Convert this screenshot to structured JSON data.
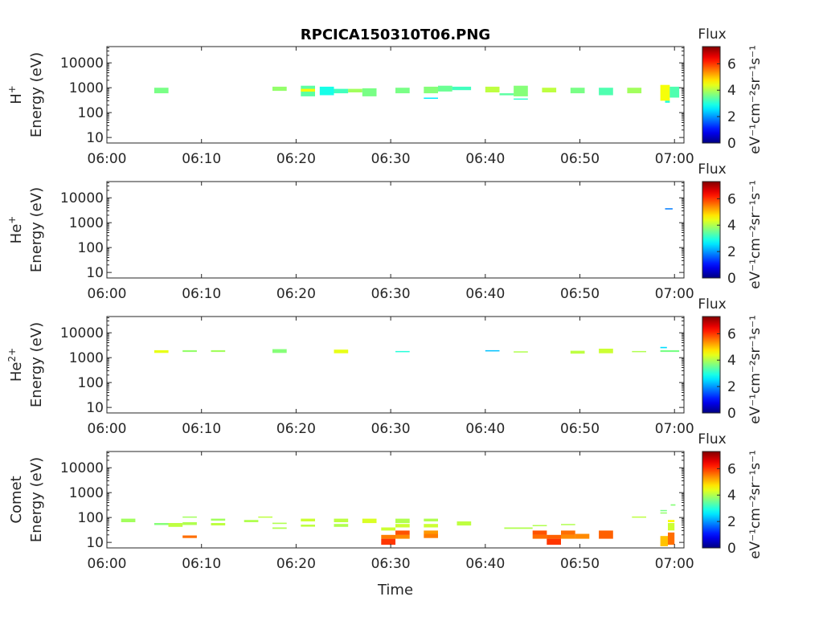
{
  "title": "RPCICA150310T06.PNG",
  "colorbar": {
    "title": "Flux",
    "label": "eV⁻¹cm⁻²sr⁻¹s⁻¹",
    "ticks": [
      "0",
      "2",
      "4",
      "6"
    ],
    "range": [
      0,
      7.3
    ],
    "colormap": "jet"
  },
  "xaxis": {
    "xlabel": "Time",
    "ticks": [
      "06:00",
      "06:10",
      "06:20",
      "06:30",
      "06:40",
      "06:50",
      "07:00"
    ],
    "range_min": [
      0,
      61
    ]
  },
  "yaxis": {
    "scale": "log",
    "tick_values": [
      10,
      100,
      1000,
      10000
    ],
    "ticks": [
      "10",
      "100",
      "1000",
      "10000"
    ],
    "range": [
      6,
      45000
    ]
  },
  "chart_data": [
    {
      "type": "heatmap",
      "species": "H",
      "charge_sup": "+",
      "ylabel_line2": "Energy (eV)",
      "cells": [
        [
          5,
          6.5,
          600,
          1000,
          3.6
        ],
        [
          17.5,
          19,
          750,
          1100,
          3.8
        ],
        [
          20.5,
          22,
          450,
          1200,
          3.4
        ],
        [
          20.5,
          22,
          700,
          900,
          4.6
        ],
        [
          22.5,
          24,
          500,
          1100,
          2.9
        ],
        [
          24,
          25.5,
          600,
          900,
          3.2
        ],
        [
          25.5,
          27,
          650,
          900,
          3.9
        ],
        [
          27,
          28.5,
          450,
          950,
          3.6
        ],
        [
          30.5,
          32,
          600,
          1000,
          3.6
        ],
        [
          33.5,
          35,
          600,
          1100,
          3.7
        ],
        [
          33.5,
          35,
          370,
          400,
          2.6
        ],
        [
          35,
          36.5,
          700,
          1200,
          3.5
        ],
        [
          36.5,
          38.5,
          800,
          1100,
          3.2
        ],
        [
          40,
          41.5,
          650,
          1100,
          4.1
        ],
        [
          41.5,
          43,
          500,
          600,
          3.4
        ],
        [
          43,
          44.5,
          450,
          1200,
          3.7
        ],
        [
          43,
          44.5,
          330,
          370,
          3.1
        ],
        [
          46,
          47.5,
          650,
          1000,
          4.1
        ],
        [
          49,
          50.5,
          600,
          1000,
          3.6
        ],
        [
          52,
          53.5,
          500,
          1000,
          3.3
        ],
        [
          55,
          56.5,
          600,
          1000,
          3.9
        ],
        [
          58.5,
          59.5,
          300,
          1300,
          4.5
        ],
        [
          59,
          59.5,
          250,
          300,
          3.0
        ],
        [
          59.5,
          60.5,
          400,
          1100,
          3.3
        ]
      ]
    },
    {
      "type": "heatmap",
      "species": "He",
      "charge_sup": "+",
      "ylabel_line2": "Energy (eV)",
      "cells": [
        [
          59,
          59.8,
          3400,
          3800,
          1.8
        ]
      ]
    },
    {
      "type": "heatmap",
      "species": "He",
      "charge_sup": "2+",
      "ylabel_line2": "Energy (eV)",
      "cells": [
        [
          5,
          6.5,
          1550,
          2000,
          4.4
        ],
        [
          8,
          9.5,
          1700,
          2000,
          3.8
        ],
        [
          11,
          12.5,
          1700,
          2000,
          3.9
        ],
        [
          17.5,
          19,
          1550,
          2200,
          3.7
        ],
        [
          24,
          25.5,
          1500,
          2100,
          4.4
        ],
        [
          30.5,
          32,
          1700,
          1850,
          3.0
        ],
        [
          40,
          41.5,
          1800,
          2000,
          2.3
        ],
        [
          43,
          44.5,
          1700,
          1800,
          4.0
        ],
        [
          49,
          50.5,
          1450,
          1900,
          4.1
        ],
        [
          52,
          53.5,
          1500,
          2300,
          4.2
        ],
        [
          55.5,
          57,
          1700,
          1850,
          4.0
        ],
        [
          58.5,
          59.2,
          2400,
          2700,
          2.5
        ],
        [
          58.5,
          60.5,
          1700,
          2000,
          3.6
        ]
      ]
    },
    {
      "type": "heatmap",
      "species": "Comet",
      "charge_sup": "",
      "ylabel_line2": "Energy (eV)",
      "cells": [
        [
          1.5,
          3,
          65,
          90,
          3.9
        ],
        [
          5,
          6.5,
          50,
          60,
          3.7
        ],
        [
          6.5,
          8,
          42,
          60,
          4.1
        ],
        [
          8,
          9.5,
          50,
          65,
          4.0
        ],
        [
          8,
          9.5,
          100,
          110,
          3.9
        ],
        [
          8,
          9.5,
          15,
          19,
          5.6
        ],
        [
          11,
          12.5,
          48,
          60,
          4.1
        ],
        [
          11,
          12.5,
          75,
          90,
          3.9
        ],
        [
          14.5,
          16,
          65,
          80,
          4.0
        ],
        [
          16,
          17.5,
          100,
          110,
          4.1
        ],
        [
          17.5,
          19,
          35,
          40,
          4.0
        ],
        [
          17.5,
          19,
          55,
          62,
          4.0
        ],
        [
          20.5,
          22,
          43,
          52,
          4.1
        ],
        [
          20.5,
          22,
          70,
          90,
          4.2
        ],
        [
          24,
          25.5,
          42,
          55,
          4.0
        ],
        [
          24,
          25.5,
          65,
          90,
          4.1
        ],
        [
          27,
          28.5,
          60,
          90,
          4.3
        ],
        [
          29,
          30.5,
          8,
          14,
          6.0
        ],
        [
          29,
          30.5,
          14,
          20,
          5.5
        ],
        [
          29,
          30.5,
          30,
          40,
          4.2
        ],
        [
          30.5,
          32,
          20,
          30,
          5.8
        ],
        [
          30.5,
          32,
          14,
          20,
          5.4
        ],
        [
          30.5,
          32,
          40,
          55,
          4.2
        ],
        [
          30.5,
          32,
          60,
          90,
          4.0
        ],
        [
          33.5,
          35,
          15,
          22,
          5.5
        ],
        [
          33.5,
          35,
          22,
          30,
          5.3
        ],
        [
          33.5,
          35,
          40,
          55,
          4.2
        ],
        [
          33.5,
          35,
          70,
          90,
          4.0
        ],
        [
          37,
          38.5,
          48,
          70,
          4.1
        ],
        [
          42,
          45,
          35,
          40,
          4.0
        ],
        [
          45,
          46.5,
          20,
          30,
          5.8
        ],
        [
          45,
          46.5,
          14,
          20,
          5.6
        ],
        [
          45,
          46.5,
          45,
          50,
          4.0
        ],
        [
          46.5,
          48,
          8,
          14,
          6.0
        ],
        [
          46.5,
          48,
          14,
          20,
          5.7
        ],
        [
          48,
          49.5,
          20,
          30,
          5.6
        ],
        [
          48,
          49.5,
          14,
          20,
          5.4
        ],
        [
          48,
          49.5,
          50,
          55,
          4.0
        ],
        [
          49.5,
          51,
          14,
          22,
          5.4
        ],
        [
          52,
          53.5,
          14,
          30,
          5.7
        ],
        [
          55.5,
          57,
          100,
          110,
          4.1
        ],
        [
          58.5,
          59.2,
          180,
          200,
          3.6
        ],
        [
          58.5,
          59.2,
          150,
          160,
          3.8
        ],
        [
          58.5,
          59.3,
          7,
          18,
          5.0
        ],
        [
          59.3,
          60,
          8,
          25,
          5.6
        ],
        [
          59.3,
          60,
          30,
          60,
          4.2
        ],
        [
          59.3,
          60,
          65,
          80,
          4.6
        ],
        [
          59.6,
          60.1,
          300,
          340,
          3.7
        ]
      ]
    }
  ]
}
